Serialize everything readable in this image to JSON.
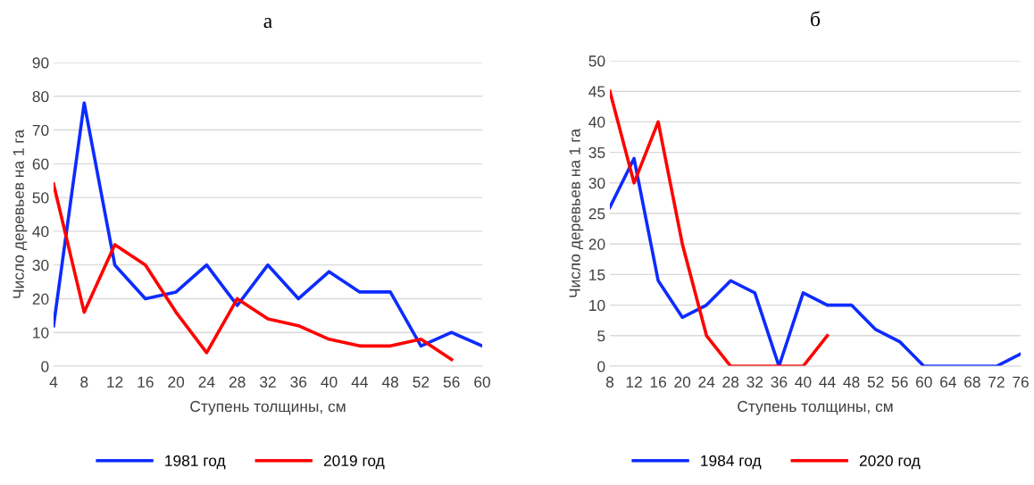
{
  "chart_data": [
    {
      "type": "line",
      "title": "а",
      "xlabel": "Ступень толщины, см",
      "ylabel": "Число деревьев на 1 га",
      "categories": [
        "4",
        "8",
        "12",
        "16",
        "20",
        "24",
        "28",
        "32",
        "36",
        "40",
        "44",
        "48",
        "52",
        "56",
        "60"
      ],
      "series": [
        {
          "name": "1981 год",
          "color": "#0d2bff",
          "values": [
            12,
            78,
            30,
            20,
            22,
            30,
            18,
            30,
            20,
            28,
            22,
            22,
            6,
            10,
            6
          ]
        },
        {
          "name": "2019 год",
          "color": "#ff0000",
          "values": [
            54,
            16,
            36,
            30,
            16,
            4,
            20,
            14,
            12,
            8,
            6,
            6,
            8,
            2,
            null
          ]
        }
      ],
      "ylim": [
        0,
        90
      ],
      "yticks": [
        0,
        10,
        20,
        30,
        40,
        50,
        60,
        70,
        80,
        90
      ],
      "grid": "y",
      "legend": "bottom"
    },
    {
      "type": "line",
      "title": "б",
      "xlabel": "Ступень толщины, см",
      "ylabel": "Число деревьев на 1 га",
      "categories": [
        "8",
        "12",
        "16",
        "20",
        "24",
        "28",
        "32",
        "36",
        "40",
        "44",
        "48",
        "52",
        "56",
        "60",
        "64",
        "68",
        "72",
        "76"
      ],
      "series": [
        {
          "name": "1984 год",
          "color": "#0d2bff",
          "values": [
            26,
            34,
            14,
            8,
            10,
            14,
            12,
            0,
            12,
            10,
            10,
            6,
            4,
            0,
            0,
            0,
            0,
            2
          ]
        },
        {
          "name": "2020 год",
          "color": "#ff0000",
          "values": [
            45,
            30,
            40,
            20,
            5,
            0,
            0,
            0,
            0,
            5,
            null,
            null,
            null,
            null,
            null,
            null,
            null,
            null
          ]
        }
      ],
      "ylim": [
        0,
        50
      ],
      "yticks": [
        0,
        5,
        10,
        15,
        20,
        25,
        30,
        35,
        40,
        45,
        50
      ],
      "grid": "y",
      "legend": "bottom"
    }
  ]
}
